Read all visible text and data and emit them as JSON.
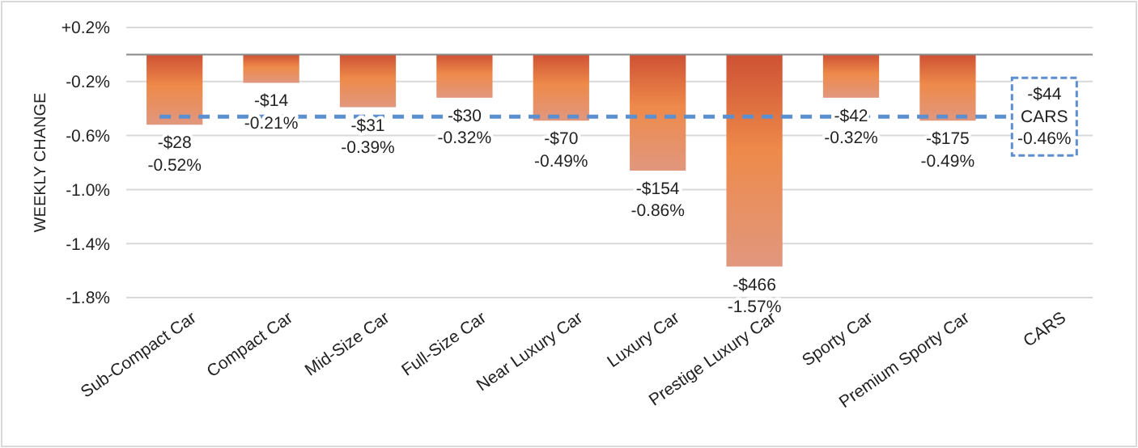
{
  "chart_data": {
    "type": "bar",
    "ylabel": "WEEKLY CHANGE",
    "categories": [
      "Sub-Compact Car",
      "Compact Car",
      "Mid-Size Car",
      "Full-Size Car",
      "Near Luxury Car",
      "Luxury Car",
      "Prestige Luxury Car",
      "Sporty Car",
      "Premium Sporty Car",
      "CARS"
    ],
    "values": [
      -0.52,
      -0.21,
      -0.39,
      -0.32,
      -0.49,
      -0.86,
      -1.57,
      -0.32,
      -0.49,
      null
    ],
    "value_labels": [
      "-$28\n-0.52%",
      "-$14\n-0.21%",
      "-$31\n-0.39%",
      "-$30\n-0.32%",
      "-$70\n-0.49%",
      "-$154\n-0.86%",
      "-$466\n-1.57%",
      "-$42\n-0.32%",
      "-$175\n-0.49%",
      null
    ],
    "color": "#ee8a4a",
    "ylim": [
      -1.8,
      0.2
    ],
    "yticks": [
      {
        "value": 0.2,
        "label": "+0.2%"
      },
      {
        "value": -0.2,
        "label": "-0.2%"
      },
      {
        "value": -0.6,
        "label": "-0.6%"
      },
      {
        "value": -1.0,
        "label": "-1.0%"
      },
      {
        "value": -1.4,
        "label": "-1.4%"
      },
      {
        "value": -1.8,
        "label": "-1.8%"
      }
    ],
    "grid": "y",
    "ref_lines": [
      {
        "axis": "y",
        "value": -0.46,
        "label": "-$44\nCARS\n-0.46%",
        "color": "#5b8fd0",
        "line_style": "dashed"
      }
    ]
  }
}
